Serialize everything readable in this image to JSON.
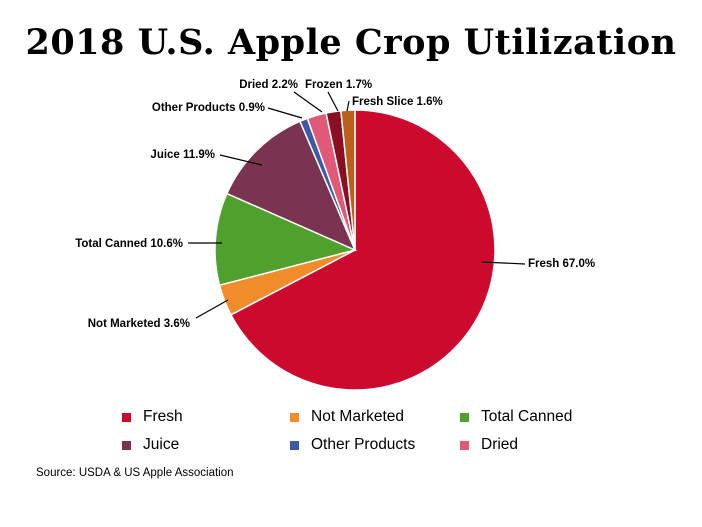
{
  "title": "2018 U.S. Apple Crop Utilization",
  "source": "Source: USDA & US Apple Association",
  "chart_data": {
    "type": "pie",
    "title": "2018 U.S. Apple Crop Utilization",
    "slices": [
      {
        "name": "Fresh",
        "value": 67.0,
        "label": "Fresh 67.0%",
        "color": "#cc0a2d"
      },
      {
        "name": "Not Marketed",
        "value": 3.6,
        "label": "Not Marketed 3.6%",
        "color": "#f08c2a"
      },
      {
        "name": "Total Canned",
        "value": 10.6,
        "label": "Total Canned 10.6%",
        "color": "#50a02d"
      },
      {
        "name": "Juice",
        "value": 11.9,
        "label": "Juice 11.9%",
        "color": "#7a3450"
      },
      {
        "name": "Other Products",
        "value": 0.9,
        "label": "Other Products 0.9%",
        "color": "#3d5aa8"
      },
      {
        "name": "Dried",
        "value": 2.2,
        "label": "Dried 2.2%",
        "color": "#e05a78"
      },
      {
        "name": "Frozen",
        "value": 1.7,
        "label": "Frozen 1.7%",
        "color": "#8a0f22"
      },
      {
        "name": "Fresh Slice",
        "value": 1.6,
        "label": "Fresh Slice 1.6%",
        "color": "#b8601c"
      }
    ],
    "legend": [
      "Fresh",
      "Not Marketed",
      "Total Canned",
      "Juice",
      "Other Products",
      "Dried"
    ],
    "legend_position": "bottom"
  }
}
